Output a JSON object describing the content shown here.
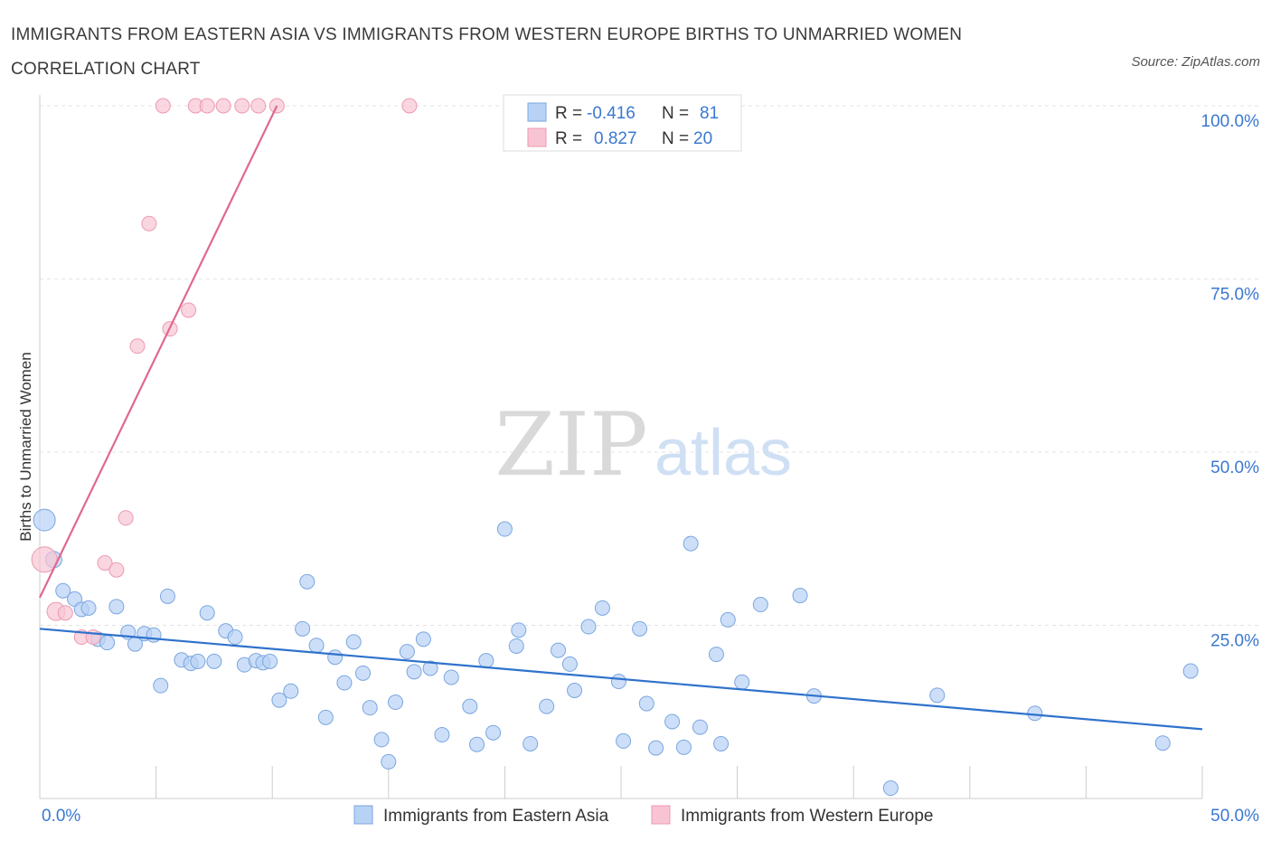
{
  "title": "IMMIGRANTS FROM EASTERN ASIA VS IMMIGRANTS FROM WESTERN EUROPE BIRTHS TO UNMARRIED WOMEN CORRELATION CHART",
  "source": "Source: ZipAtlas.com",
  "watermark": {
    "zip": "ZIP",
    "atlas": "atlas"
  },
  "chart_data": {
    "type": "scatter",
    "title": "IMMIGRANTS FROM EASTERN ASIA VS IMMIGRANTS FROM WESTERN EUROPE BIRTHS TO UNMARRIED WOMEN CORRELATION CHART",
    "xlabel": "",
    "ylabel": "Births to Unmarried Women",
    "xlim": [
      0,
      50
    ],
    "ylim": [
      0,
      100
    ],
    "x_tick_labels": [
      {
        "value": 0,
        "label": "0.0%"
      },
      {
        "value": 50,
        "label": "50.0%"
      }
    ],
    "y_tick_labels": [
      {
        "value": 100,
        "label": "100.0%"
      },
      {
        "value": 75,
        "label": "75.0%"
      },
      {
        "value": 50,
        "label": "50.0%"
      },
      {
        "value": 25,
        "label": "25.0%"
      }
    ],
    "legend_stats": [
      {
        "r_label": "R =",
        "r": "-0.416",
        "n_label": "N =",
        "n": "81",
        "color": "#6a9de0"
      },
      {
        "r_label": "R =",
        "r": "0.827",
        "n_label": "N =",
        "n": "20",
        "color": "#ee97b0"
      }
    ],
    "series": [
      {
        "name": "Immigrants from Eastern Asia",
        "fill": "#b8d2f5",
        "stroke": "#7aa6e0",
        "line_color": "#2f72cc",
        "trend": {
          "x": [
            0,
            50
          ],
          "y": [
            24.5,
            10.0
          ]
        },
        "points": [
          [
            0.2,
            40.2,
            12
          ],
          [
            0.6,
            34.5,
            9
          ],
          [
            1.0,
            30.0,
            8
          ],
          [
            1.5,
            28.8,
            8
          ],
          [
            1.8,
            27.3,
            8
          ],
          [
            2.1,
            27.5,
            8
          ],
          [
            2.5,
            23.0,
            8
          ],
          [
            2.9,
            22.5,
            8
          ],
          [
            3.3,
            27.7,
            8
          ],
          [
            3.8,
            24.0,
            8
          ],
          [
            4.1,
            22.3,
            8
          ],
          [
            4.5,
            23.8,
            8
          ],
          [
            4.9,
            23.6,
            8
          ],
          [
            5.2,
            16.3,
            8
          ],
          [
            5.5,
            29.2,
            8
          ],
          [
            6.1,
            20.0,
            8
          ],
          [
            6.5,
            19.5,
            8
          ],
          [
            6.8,
            19.8,
            8
          ],
          [
            7.2,
            26.8,
            8
          ],
          [
            7.5,
            19.8,
            8
          ],
          [
            8.0,
            24.2,
            8
          ],
          [
            8.4,
            23.3,
            8
          ],
          [
            8.8,
            19.3,
            8
          ],
          [
            9.3,
            19.9,
            8
          ],
          [
            9.6,
            19.6,
            8
          ],
          [
            9.9,
            19.8,
            8
          ],
          [
            10.3,
            14.2,
            8
          ],
          [
            10.8,
            15.5,
            8
          ],
          [
            11.3,
            24.5,
            8
          ],
          [
            11.5,
            31.3,
            8
          ],
          [
            11.9,
            22.1,
            8
          ],
          [
            12.3,
            11.7,
            8
          ],
          [
            12.7,
            20.4,
            8
          ],
          [
            13.1,
            16.7,
            8
          ],
          [
            13.5,
            22.6,
            8
          ],
          [
            13.9,
            18.1,
            8
          ],
          [
            14.2,
            13.1,
            8
          ],
          [
            14.7,
            8.5,
            8
          ],
          [
            15.0,
            5.3,
            8
          ],
          [
            15.3,
            13.9,
            8
          ],
          [
            15.8,
            21.2,
            8
          ],
          [
            16.1,
            18.3,
            8
          ],
          [
            16.5,
            23.0,
            8
          ],
          [
            16.8,
            18.8,
            8
          ],
          [
            17.3,
            9.2,
            8
          ],
          [
            17.7,
            17.5,
            8
          ],
          [
            18.5,
            13.3,
            8
          ],
          [
            18.8,
            7.8,
            8
          ],
          [
            19.2,
            19.9,
            8
          ],
          [
            19.5,
            9.5,
            8
          ],
          [
            20.0,
            38.9,
            8
          ],
          [
            20.5,
            22.0,
            8
          ],
          [
            20.6,
            24.3,
            8
          ],
          [
            21.1,
            7.9,
            8
          ],
          [
            21.8,
            13.3,
            8
          ],
          [
            22.3,
            21.4,
            8
          ],
          [
            22.8,
            19.4,
            8
          ],
          [
            23.0,
            15.6,
            8
          ],
          [
            23.6,
            24.8,
            8
          ],
          [
            24.2,
            27.5,
            8
          ],
          [
            24.9,
            16.9,
            8
          ],
          [
            25.1,
            8.3,
            8
          ],
          [
            25.8,
            24.5,
            8
          ],
          [
            26.1,
            13.7,
            8
          ],
          [
            26.5,
            7.3,
            8
          ],
          [
            27.2,
            11.1,
            8
          ],
          [
            27.7,
            7.4,
            8
          ],
          [
            28.0,
            36.8,
            8
          ],
          [
            28.4,
            10.3,
            8
          ],
          [
            29.1,
            20.8,
            8
          ],
          [
            29.3,
            7.9,
            8
          ],
          [
            29.6,
            25.8,
            8
          ],
          [
            30.2,
            16.8,
            8
          ],
          [
            31.0,
            28.0,
            8
          ],
          [
            32.7,
            29.3,
            8
          ],
          [
            33.3,
            14.8,
            8
          ],
          [
            36.6,
            1.5,
            8
          ],
          [
            38.6,
            14.9,
            8
          ],
          [
            42.8,
            12.3,
            8
          ],
          [
            48.3,
            8.0,
            8
          ],
          [
            49.5,
            18.4,
            8
          ]
        ]
      },
      {
        "name": "Immigrants from Western Europe",
        "fill": "#f8c4d3",
        "stroke": "#ec9ab2",
        "line_color": "#e06890",
        "trend": {
          "x": [
            0,
            10.2
          ],
          "y": [
            29.0,
            100.0
          ]
        },
        "points": [
          [
            0.2,
            34.5,
            14
          ],
          [
            0.7,
            27.0,
            10
          ],
          [
            1.1,
            26.8,
            8
          ],
          [
            1.8,
            23.3,
            8
          ],
          [
            2.3,
            23.3,
            8
          ],
          [
            2.8,
            34.0,
            8
          ],
          [
            3.3,
            33.0,
            8
          ],
          [
            3.7,
            40.5,
            8
          ],
          [
            4.2,
            65.3,
            8
          ],
          [
            4.7,
            83.0,
            8
          ],
          [
            5.3,
            100.0,
            8
          ],
          [
            5.6,
            67.8,
            8
          ],
          [
            6.4,
            70.5,
            8
          ],
          [
            6.7,
            100.0,
            8
          ],
          [
            7.2,
            100.0,
            8
          ],
          [
            7.9,
            100.0,
            8
          ],
          [
            8.7,
            100.0,
            8
          ],
          [
            9.4,
            100.0,
            8
          ],
          [
            10.2,
            100.0,
            8
          ],
          [
            15.9,
            100.0,
            8
          ]
        ]
      }
    ]
  }
}
